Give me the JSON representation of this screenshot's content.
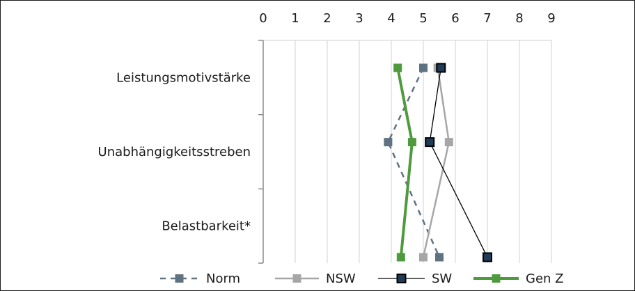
{
  "chart_data": {
    "type": "line",
    "orientation": "horizontal-values",
    "title": "",
    "xlabel": "",
    "ylabel": "",
    "xlim": [
      0,
      9
    ],
    "x_ticks": [
      "0",
      "1",
      "2",
      "3",
      "4",
      "5",
      "6",
      "7",
      "8",
      "9"
    ],
    "categories": [
      "Leistungsmotivstärke",
      "Unabhängigkeitsstreben",
      "Belastbarkeit*"
    ],
    "grid": "vertical",
    "legend": "bottom",
    "series": [
      {
        "name": "Norm",
        "values": [
          5.0,
          3.9,
          5.5
        ],
        "color": "#5f7282",
        "style": "dashed",
        "marker": "square"
      },
      {
        "name": "NSW",
        "values": [
          5.45,
          5.8,
          5.0
        ],
        "color": "#a6a6a6",
        "style": "solid",
        "marker": "square"
      },
      {
        "name": "SW",
        "values": [
          5.55,
          5.2,
          7.0
        ],
        "color": "#000000",
        "style": "solid",
        "marker": "square-navy"
      },
      {
        "name": "Gen Z",
        "values": [
          4.2,
          4.65,
          4.3
        ],
        "color": "#4e9a3c",
        "style": "solid-thick",
        "marker": "square"
      }
    ]
  }
}
